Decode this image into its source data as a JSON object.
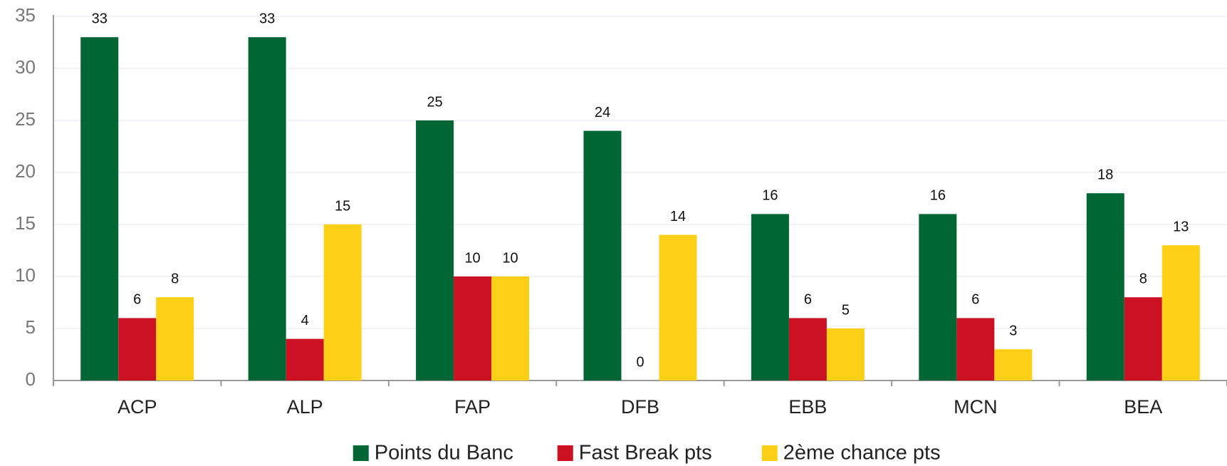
{
  "chart_data": {
    "type": "bar",
    "categories": [
      "ACP",
      "ALP",
      "FAP",
      "DFB",
      "EBB",
      "MCN",
      "BEA"
    ],
    "series": [
      {
        "name": "Points du Banc",
        "color": "#006633",
        "values": [
          33,
          33,
          25,
          24,
          16,
          16,
          18
        ]
      },
      {
        "name": "Fast Break pts",
        "color": "#cc1122",
        "values": [
          6,
          4,
          10,
          0,
          6,
          6,
          8
        ]
      },
      {
        "name": "2ème chance pts",
        "color": "#fdd017",
        "values": [
          8,
          15,
          10,
          14,
          5,
          3,
          13
        ]
      }
    ],
    "ylim": [
      0,
      35
    ],
    "yticks": [
      0,
      5,
      10,
      15,
      20,
      25,
      30,
      35
    ],
    "grid": true,
    "legend": "bottom"
  }
}
